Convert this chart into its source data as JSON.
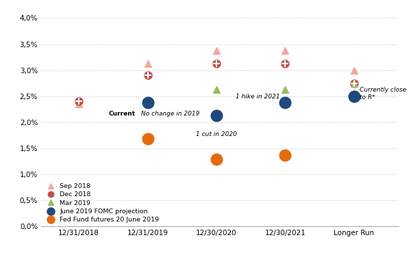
{
  "x_positions": [
    0,
    1,
    2,
    3,
    4
  ],
  "x_labels": [
    "12/31/2018",
    "12/31/2019",
    "12/30/2020",
    "12/30/2021",
    "Longer Run"
  ],
  "sep2018": [
    2.35,
    3.125,
    3.375,
    3.375,
    3.0
  ],
  "dec2018": [
    2.4,
    2.9,
    3.125,
    3.125,
    2.75
  ],
  "mar2019": [
    null,
    null,
    2.625,
    2.625,
    2.75
  ],
  "june2019_fomc": [
    null,
    2.375,
    2.125,
    2.375,
    2.5
  ],
  "fed_fund_futures": [
    null,
    1.675,
    1.28,
    1.36,
    null
  ],
  "sep2018_color": "#f4a7a0",
  "dec2018_color": "#c0504d",
  "mar2019_color": "#9bbb59",
  "june2019_color": "#1f497d",
  "fed_fund_color": "#e36c09",
  "ylim_low": 0.0,
  "ylim_high": 0.042,
  "yticks": [
    0.0,
    0.005,
    0.01,
    0.015,
    0.02,
    0.025,
    0.03,
    0.035,
    0.04
  ],
  "ytick_labels": [
    "0,0%",
    "0,5%",
    "1,0%",
    "1,5%",
    "2,0%",
    "2,5%",
    "3,0%",
    "3,5%",
    "4,0%"
  ],
  "background_color": "#ffffff",
  "grid_color": "#c8c8c8",
  "xlim_low": -0.55,
  "xlim_high": 4.65,
  "small_ms": 7,
  "large_ms": 12
}
